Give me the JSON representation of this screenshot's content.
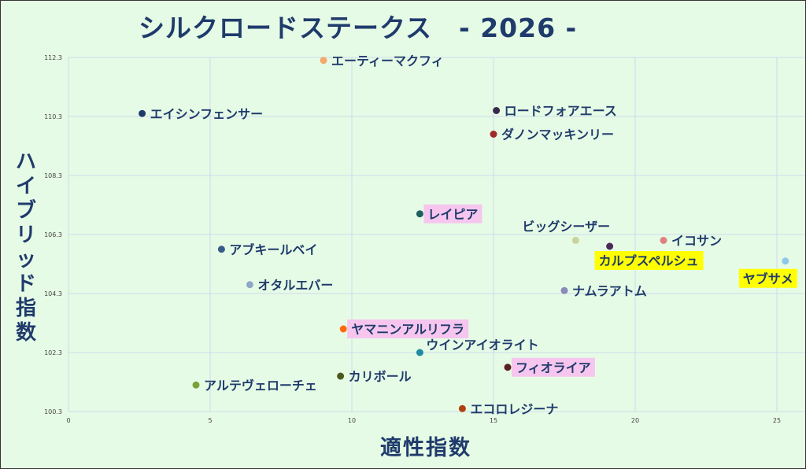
{
  "title": "シルクロードステークス　- 2026 -",
  "chart_data": {
    "type": "scatter",
    "title": "シルクロードステークス　- 2026 -",
    "xlabel": "適性指数",
    "ylabel": "ハイブリッド指数",
    "xlim": [
      0,
      26
    ],
    "ylim": [
      100.3,
      112.3
    ],
    "xticks": [
      0,
      5,
      10,
      15,
      20,
      25
    ],
    "yticks": [
      100.3,
      102.3,
      104.3,
      106.3,
      108.3,
      110.3,
      112.3
    ],
    "grid": true,
    "points": [
      {
        "name": "エーティーマクフィ",
        "x": 9.0,
        "y": 112.2,
        "color": "#f4a86a",
        "highlight": "none"
      },
      {
        "name": "エイシンフェンサー",
        "x": 2.6,
        "y": 110.4,
        "color": "#1f3b6b",
        "highlight": "none"
      },
      {
        "name": "ロードフォアエース",
        "x": 15.1,
        "y": 110.5,
        "color": "#3a2a4a",
        "highlight": "none"
      },
      {
        "name": "ダノンマッキンリー",
        "x": 15.0,
        "y": 109.7,
        "color": "#a02a2a",
        "highlight": "none"
      },
      {
        "name": "レイピア",
        "x": 12.4,
        "y": 107.0,
        "color": "#1f5f5f",
        "highlight": "pink"
      },
      {
        "name": "ビッグシーザー",
        "x": 17.9,
        "y": 106.1,
        "color": "#c8d49a",
        "highlight": "none"
      },
      {
        "name": "イコサン",
        "x": 21.0,
        "y": 106.1,
        "color": "#e08080",
        "highlight": "none"
      },
      {
        "name": "カルプスペルシュ",
        "x": 19.1,
        "y": 105.9,
        "color": "#4a2a5a",
        "highlight": "yellow"
      },
      {
        "name": "ヤブサメ",
        "x": 25.3,
        "y": 105.4,
        "color": "#8fc8e8",
        "highlight": "yellow"
      },
      {
        "name": "アブキールベイ",
        "x": 5.4,
        "y": 105.8,
        "color": "#3a5a8a",
        "highlight": "none"
      },
      {
        "name": "オタルエバー",
        "x": 6.4,
        "y": 104.6,
        "color": "#8fa8c8",
        "highlight": "none"
      },
      {
        "name": "ナムラアトム",
        "x": 17.5,
        "y": 104.4,
        "color": "#8a8ab8",
        "highlight": "none"
      },
      {
        "name": "ヤマニンアルリフラ",
        "x": 9.7,
        "y": 103.1,
        "color": "#ff6a10",
        "highlight": "pink"
      },
      {
        "name": "ウインアイオライト",
        "x": 12.4,
        "y": 102.3,
        "color": "#1f8ca0",
        "highlight": "none"
      },
      {
        "name": "フィオライア",
        "x": 15.5,
        "y": 101.8,
        "color": "#5a1f1f",
        "highlight": "pink"
      },
      {
        "name": "アルテヴェローチェ",
        "x": 4.5,
        "y": 101.2,
        "color": "#7aa03a",
        "highlight": "none"
      },
      {
        "name": "カリボール",
        "x": 9.6,
        "y": 101.5,
        "color": "#4a5a1f",
        "highlight": "none"
      },
      {
        "name": "エコロレジーナ",
        "x": 13.9,
        "y": 100.4,
        "color": "#b04010",
        "highlight": "none"
      }
    ]
  }
}
